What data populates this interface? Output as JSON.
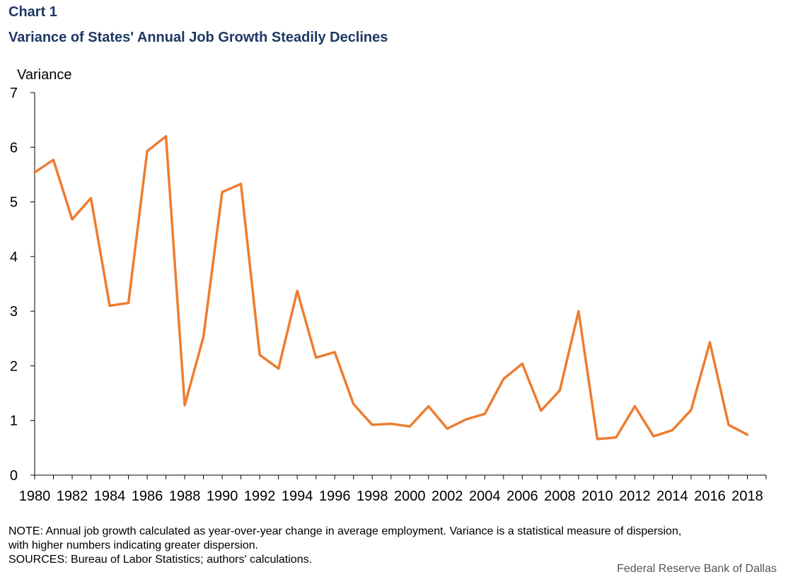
{
  "header": {
    "chart_label": "Chart 1",
    "title": "Variance of States' Annual Job Growth Steadily Declines"
  },
  "chart_data": {
    "type": "line",
    "title": "Variance of States' Annual Job Growth Steadily Declines",
    "xlabel": "",
    "ylabel": "Variance",
    "ylim": [
      0,
      7
    ],
    "yticks": [
      0,
      1,
      2,
      3,
      4,
      5,
      6,
      7
    ],
    "xticks": [
      1980,
      1982,
      1984,
      1986,
      1988,
      1990,
      1992,
      1994,
      1996,
      1998,
      2000,
      2002,
      2004,
      2006,
      2008,
      2010,
      2012,
      2014,
      2016,
      2018
    ],
    "xlim": [
      1980,
      2019
    ],
    "grid": false,
    "series": [
      {
        "name": "Variance",
        "color": "#ed7d31",
        "x": [
          1980,
          1981,
          1982,
          1983,
          1984,
          1985,
          1986,
          1987,
          1988,
          1989,
          1990,
          1991,
          1992,
          1993,
          1994,
          1995,
          1996,
          1997,
          1998,
          1999,
          2000,
          2001,
          2002,
          2003,
          2004,
          2005,
          2006,
          2007,
          2008,
          2009,
          2010,
          2011,
          2012,
          2013,
          2014,
          2015,
          2016,
          2017,
          2018
        ],
        "values": [
          5.54,
          5.77,
          4.68,
          5.07,
          3.1,
          3.15,
          5.93,
          6.2,
          1.28,
          2.53,
          5.18,
          5.33,
          2.2,
          1.95,
          3.37,
          2.15,
          2.25,
          1.3,
          0.92,
          0.94,
          0.89,
          1.26,
          0.85,
          1.02,
          1.12,
          1.76,
          2.04,
          1.18,
          1.55,
          3.0,
          0.66,
          0.69,
          1.26,
          0.71,
          0.82,
          1.19,
          2.43,
          0.92,
          0.74
        ]
      }
    ]
  },
  "footer": {
    "note_line1": "NOTE: Annual job growth calculated as year-over-year change in average employment.  Variance is a statistical measure of dispersion,",
    "note_line2": "with higher numbers indicating greater dispersion.",
    "sources": "SOURCES: Bureau of Labor Statistics; authors' calculations.",
    "credit": "Federal Reserve Bank of Dallas"
  }
}
